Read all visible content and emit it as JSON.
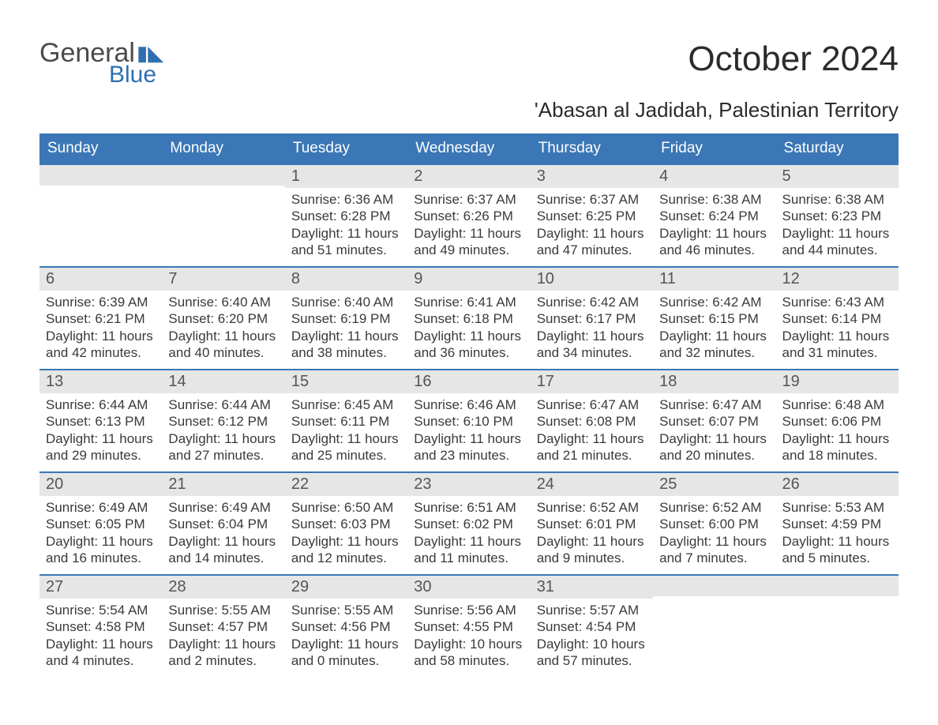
{
  "logo": {
    "general": "General",
    "flag": "▮◣",
    "blue": "Blue"
  },
  "title": "October 2024",
  "subtitle": "'Abasan al Jadidah, Palestinian Territory",
  "colors": {
    "header_bg": "#3b77b6",
    "header_text": "#ffffff",
    "daynum_bg": "#e6e6e6",
    "border": "#3b77b6",
    "body_text": "#3a3a3a",
    "page_bg": "#ffffff",
    "logo_accent": "#2f6fb0"
  },
  "typography": {
    "title_fontsize": 44,
    "subtitle_fontsize": 26,
    "weekday_fontsize": 19,
    "daynum_fontsize": 20,
    "body_fontsize": 17,
    "font_family": "Arial"
  },
  "weekdays": [
    "Sunday",
    "Monday",
    "Tuesday",
    "Wednesday",
    "Thursday",
    "Friday",
    "Saturday"
  ],
  "weeks": [
    [
      {
        "num": "",
        "sunrise": "",
        "sunset": "",
        "daylight1": "",
        "daylight2": ""
      },
      {
        "num": "",
        "sunrise": "",
        "sunset": "",
        "daylight1": "",
        "daylight2": ""
      },
      {
        "num": "1",
        "sunrise": "Sunrise: 6:36 AM",
        "sunset": "Sunset: 6:28 PM",
        "daylight1": "Daylight: 11 hours",
        "daylight2": "and 51 minutes."
      },
      {
        "num": "2",
        "sunrise": "Sunrise: 6:37 AM",
        "sunset": "Sunset: 6:26 PM",
        "daylight1": "Daylight: 11 hours",
        "daylight2": "and 49 minutes."
      },
      {
        "num": "3",
        "sunrise": "Sunrise: 6:37 AM",
        "sunset": "Sunset: 6:25 PM",
        "daylight1": "Daylight: 11 hours",
        "daylight2": "and 47 minutes."
      },
      {
        "num": "4",
        "sunrise": "Sunrise: 6:38 AM",
        "sunset": "Sunset: 6:24 PM",
        "daylight1": "Daylight: 11 hours",
        "daylight2": "and 46 minutes."
      },
      {
        "num": "5",
        "sunrise": "Sunrise: 6:38 AM",
        "sunset": "Sunset: 6:23 PM",
        "daylight1": "Daylight: 11 hours",
        "daylight2": "and 44 minutes."
      }
    ],
    [
      {
        "num": "6",
        "sunrise": "Sunrise: 6:39 AM",
        "sunset": "Sunset: 6:21 PM",
        "daylight1": "Daylight: 11 hours",
        "daylight2": "and 42 minutes."
      },
      {
        "num": "7",
        "sunrise": "Sunrise: 6:40 AM",
        "sunset": "Sunset: 6:20 PM",
        "daylight1": "Daylight: 11 hours",
        "daylight2": "and 40 minutes."
      },
      {
        "num": "8",
        "sunrise": "Sunrise: 6:40 AM",
        "sunset": "Sunset: 6:19 PM",
        "daylight1": "Daylight: 11 hours",
        "daylight2": "and 38 minutes."
      },
      {
        "num": "9",
        "sunrise": "Sunrise: 6:41 AM",
        "sunset": "Sunset: 6:18 PM",
        "daylight1": "Daylight: 11 hours",
        "daylight2": "and 36 minutes."
      },
      {
        "num": "10",
        "sunrise": "Sunrise: 6:42 AM",
        "sunset": "Sunset: 6:17 PM",
        "daylight1": "Daylight: 11 hours",
        "daylight2": "and 34 minutes."
      },
      {
        "num": "11",
        "sunrise": "Sunrise: 6:42 AM",
        "sunset": "Sunset: 6:15 PM",
        "daylight1": "Daylight: 11 hours",
        "daylight2": "and 32 minutes."
      },
      {
        "num": "12",
        "sunrise": "Sunrise: 6:43 AM",
        "sunset": "Sunset: 6:14 PM",
        "daylight1": "Daylight: 11 hours",
        "daylight2": "and 31 minutes."
      }
    ],
    [
      {
        "num": "13",
        "sunrise": "Sunrise: 6:44 AM",
        "sunset": "Sunset: 6:13 PM",
        "daylight1": "Daylight: 11 hours",
        "daylight2": "and 29 minutes."
      },
      {
        "num": "14",
        "sunrise": "Sunrise: 6:44 AM",
        "sunset": "Sunset: 6:12 PM",
        "daylight1": "Daylight: 11 hours",
        "daylight2": "and 27 minutes."
      },
      {
        "num": "15",
        "sunrise": "Sunrise: 6:45 AM",
        "sunset": "Sunset: 6:11 PM",
        "daylight1": "Daylight: 11 hours",
        "daylight2": "and 25 minutes."
      },
      {
        "num": "16",
        "sunrise": "Sunrise: 6:46 AM",
        "sunset": "Sunset: 6:10 PM",
        "daylight1": "Daylight: 11 hours",
        "daylight2": "and 23 minutes."
      },
      {
        "num": "17",
        "sunrise": "Sunrise: 6:47 AM",
        "sunset": "Sunset: 6:08 PM",
        "daylight1": "Daylight: 11 hours",
        "daylight2": "and 21 minutes."
      },
      {
        "num": "18",
        "sunrise": "Sunrise: 6:47 AM",
        "sunset": "Sunset: 6:07 PM",
        "daylight1": "Daylight: 11 hours",
        "daylight2": "and 20 minutes."
      },
      {
        "num": "19",
        "sunrise": "Sunrise: 6:48 AM",
        "sunset": "Sunset: 6:06 PM",
        "daylight1": "Daylight: 11 hours",
        "daylight2": "and 18 minutes."
      }
    ],
    [
      {
        "num": "20",
        "sunrise": "Sunrise: 6:49 AM",
        "sunset": "Sunset: 6:05 PM",
        "daylight1": "Daylight: 11 hours",
        "daylight2": "and 16 minutes."
      },
      {
        "num": "21",
        "sunrise": "Sunrise: 6:49 AM",
        "sunset": "Sunset: 6:04 PM",
        "daylight1": "Daylight: 11 hours",
        "daylight2": "and 14 minutes."
      },
      {
        "num": "22",
        "sunrise": "Sunrise: 6:50 AM",
        "sunset": "Sunset: 6:03 PM",
        "daylight1": "Daylight: 11 hours",
        "daylight2": "and 12 minutes."
      },
      {
        "num": "23",
        "sunrise": "Sunrise: 6:51 AM",
        "sunset": "Sunset: 6:02 PM",
        "daylight1": "Daylight: 11 hours",
        "daylight2": "and 11 minutes."
      },
      {
        "num": "24",
        "sunrise": "Sunrise: 6:52 AM",
        "sunset": "Sunset: 6:01 PM",
        "daylight1": "Daylight: 11 hours",
        "daylight2": "and 9 minutes."
      },
      {
        "num": "25",
        "sunrise": "Sunrise: 6:52 AM",
        "sunset": "Sunset: 6:00 PM",
        "daylight1": "Daylight: 11 hours",
        "daylight2": "and 7 minutes."
      },
      {
        "num": "26",
        "sunrise": "Sunrise: 5:53 AM",
        "sunset": "Sunset: 4:59 PM",
        "daylight1": "Daylight: 11 hours",
        "daylight2": "and 5 minutes."
      }
    ],
    [
      {
        "num": "27",
        "sunrise": "Sunrise: 5:54 AM",
        "sunset": "Sunset: 4:58 PM",
        "daylight1": "Daylight: 11 hours",
        "daylight2": "and 4 minutes."
      },
      {
        "num": "28",
        "sunrise": "Sunrise: 5:55 AM",
        "sunset": "Sunset: 4:57 PM",
        "daylight1": "Daylight: 11 hours",
        "daylight2": "and 2 minutes."
      },
      {
        "num": "29",
        "sunrise": "Sunrise: 5:55 AM",
        "sunset": "Sunset: 4:56 PM",
        "daylight1": "Daylight: 11 hours",
        "daylight2": "and 0 minutes."
      },
      {
        "num": "30",
        "sunrise": "Sunrise: 5:56 AM",
        "sunset": "Sunset: 4:55 PM",
        "daylight1": "Daylight: 10 hours",
        "daylight2": "and 58 minutes."
      },
      {
        "num": "31",
        "sunrise": "Sunrise: 5:57 AM",
        "sunset": "Sunset: 4:54 PM",
        "daylight1": "Daylight: 10 hours",
        "daylight2": "and 57 minutes."
      },
      {
        "num": "",
        "sunrise": "",
        "sunset": "",
        "daylight1": "",
        "daylight2": ""
      },
      {
        "num": "",
        "sunrise": "",
        "sunset": "",
        "daylight1": "",
        "daylight2": ""
      }
    ]
  ]
}
